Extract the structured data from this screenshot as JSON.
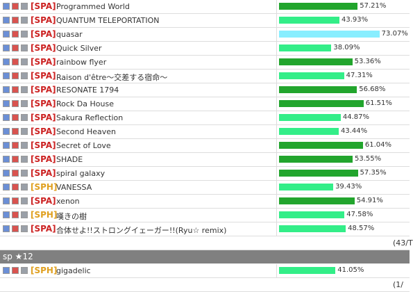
{
  "groups": [
    {
      "rows": [
        {
          "tag": "[SPA]",
          "title": "Programmed World",
          "value": 57.21,
          "value_label": "57.21%",
          "color": "#22a52d"
        },
        {
          "tag": "[SPA]",
          "title": "QUANTUM TELEPORTATION",
          "value": 43.93,
          "value_label": "43.93%",
          "color": "#33ee88"
        },
        {
          "tag": "[SPA]",
          "title": "quasar",
          "value": 73.07,
          "value_label": "73.07%",
          "color": "#88eeff"
        },
        {
          "tag": "[SPA]",
          "title": "Quick Silver",
          "value": 38.09,
          "value_label": "38.09%",
          "color": "#33ee88"
        },
        {
          "tag": "[SPA]",
          "title": "rainbow flyer",
          "value": 53.36,
          "value_label": "53.36%",
          "color": "#22a52d"
        },
        {
          "tag": "[SPA]",
          "title": "Raison d'être～交差する宿命～",
          "value": 47.31,
          "value_label": "47.31%",
          "color": "#33ee88"
        },
        {
          "tag": "[SPA]",
          "title": "RESONATE 1794",
          "value": 56.68,
          "value_label": "56.68%",
          "color": "#22a52d"
        },
        {
          "tag": "[SPA]",
          "title": "Rock Da House",
          "value": 61.51,
          "value_label": "61.51%",
          "color": "#22a52d"
        },
        {
          "tag": "[SPA]",
          "title": "Sakura Reflection",
          "value": 44.87,
          "value_label": "44.87%",
          "color": "#33ee88"
        },
        {
          "tag": "[SPA]",
          "title": "Second Heaven",
          "value": 43.44,
          "value_label": "43.44%",
          "color": "#33ee88"
        },
        {
          "tag": "[SPA]",
          "title": "Secret of Love",
          "value": 61.04,
          "value_label": "61.04%",
          "color": "#22a52d"
        },
        {
          "tag": "[SPA]",
          "title": "SHADE",
          "value": 53.55,
          "value_label": "53.55%",
          "color": "#22a52d"
        },
        {
          "tag": "[SPA]",
          "title": "spiral galaxy",
          "value": 57.35,
          "value_label": "57.35%",
          "color": "#22a52d"
        },
        {
          "tag": "[SPH]",
          "title": "VANESSA",
          "value": 39.43,
          "value_label": "39.43%",
          "color": "#33ee88"
        },
        {
          "tag": "[SPA]",
          "title": "xenon",
          "value": 54.91,
          "value_label": "54.91%",
          "color": "#22a52d"
        },
        {
          "tag": "[SPH]",
          "title": "嘆きの樹",
          "value": 47.58,
          "value_label": "47.58%",
          "color": "#33ee88"
        },
        {
          "tag": "[SPA]",
          "title": "合体せよ!!ストロングイェーガー!!(Ryu☆ remix)",
          "value": 48.57,
          "value_label": "48.57%",
          "color": "#33ee88"
        }
      ],
      "footer": "(43/T"
    },
    {
      "header": "sp ★12",
      "rows": [
        {
          "tag": "[SPH]",
          "title": "gigadelic",
          "value": 41.05,
          "value_label": "41.05%",
          "color": "#33ee88"
        }
      ],
      "footer": "(1/"
    }
  ]
}
